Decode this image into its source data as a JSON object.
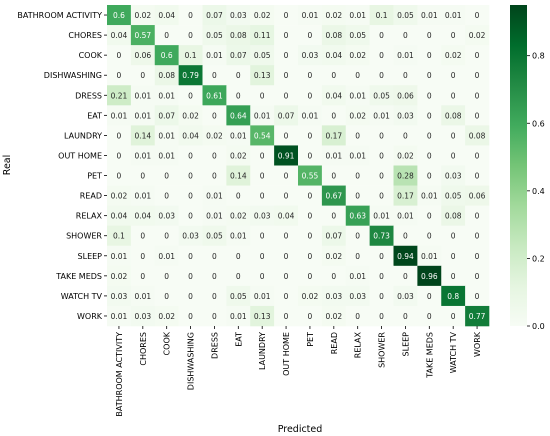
{
  "chart_data": {
    "type": "heatmap",
    "title": "",
    "xlabel": "Predicted",
    "ylabel": "Real",
    "categories": [
      "BATHROOM ACTIVITY",
      "CHORES",
      "COOK",
      "DISHWASHING",
      "DRESS",
      "EAT",
      "LAUNDRY",
      "OUT HOME",
      "PET",
      "READ",
      "RELAX",
      "SHOWER",
      "SLEEP",
      "TAKE MEDS",
      "WATCH TV",
      "WORK"
    ],
    "matrix": [
      [
        0.6,
        0.02,
        0.04,
        0,
        0.07,
        0.03,
        0.02,
        0,
        0.01,
        0.02,
        0.01,
        0.1,
        0.05,
        0.01,
        0.01,
        0
      ],
      [
        0.04,
        0.57,
        0,
        0,
        0.05,
        0.08,
        0.11,
        0,
        0,
        0.08,
        0.05,
        0,
        0,
        0,
        0,
        0.02
      ],
      [
        0,
        0.06,
        0.6,
        0.1,
        0.01,
        0.07,
        0.05,
        0,
        0.03,
        0.04,
        0.02,
        0,
        0.01,
        0,
        0.02,
        0
      ],
      [
        0,
        0,
        0.08,
        0.79,
        0,
        0,
        0.13,
        0,
        0,
        0,
        0,
        0,
        0,
        0,
        0,
        0
      ],
      [
        0.21,
        0.01,
        0.01,
        0,
        0.61,
        0,
        0,
        0,
        0,
        0.04,
        0.01,
        0.05,
        0.06,
        0,
        0,
        0
      ],
      [
        0.01,
        0.01,
        0.07,
        0.02,
        0,
        0.64,
        0.01,
        0.07,
        0.01,
        0,
        0.02,
        0.01,
        0.03,
        0,
        0.08,
        0
      ],
      [
        0,
        0.14,
        0.01,
        0.04,
        0.02,
        0.01,
        0.54,
        0,
        0,
        0.17,
        0,
        0,
        0,
        0,
        0,
        0.08
      ],
      [
        0,
        0.01,
        0.01,
        0,
        0,
        0.02,
        0,
        0.91,
        0,
        0.01,
        0.01,
        0,
        0.02,
        0,
        0,
        0
      ],
      [
        0,
        0,
        0,
        0,
        0,
        0.14,
        0,
        0,
        0.55,
        0,
        0,
        0,
        0.28,
        0,
        0.03,
        0
      ],
      [
        0.02,
        0.01,
        0,
        0,
        0.01,
        0,
        0,
        0,
        0,
        0.67,
        0,
        0,
        0.17,
        0.01,
        0.05,
        0.06
      ],
      [
        0.04,
        0.04,
        0.03,
        0,
        0.01,
        0.02,
        0.03,
        0.04,
        0,
        0,
        0.63,
        0.01,
        0.01,
        0,
        0.08,
        0
      ],
      [
        0.1,
        0,
        0,
        0.03,
        0.05,
        0.01,
        0,
        0,
        0,
        0.07,
        0,
        0.73,
        0,
        0,
        0,
        0
      ],
      [
        0.01,
        0,
        0.01,
        0,
        0,
        0,
        0,
        0,
        0,
        0.02,
        0,
        0,
        0.94,
        0.01,
        0,
        0
      ],
      [
        0.02,
        0,
        0,
        0,
        0,
        0,
        0,
        0,
        0,
        0,
        0.01,
        0,
        0,
        0.96,
        0,
        0
      ],
      [
        0.03,
        0.01,
        0,
        0,
        0,
        0.05,
        0.01,
        0,
        0.02,
        0.03,
        0.03,
        0,
        0.03,
        0,
        0.8,
        0
      ],
      [
        0.01,
        0.03,
        0.02,
        0,
        0,
        0.01,
        0.13,
        0,
        0,
        0.02,
        0,
        0,
        0,
        0,
        0,
        0.77
      ]
    ],
    "colorbar": {
      "range": [
        0,
        0.95
      ],
      "ticks": [
        "0.0",
        "0.2",
        "0.4",
        "0.6",
        "0.8"
      ],
      "colormap": "Greens"
    },
    "grid": false,
    "legend": "none"
  }
}
